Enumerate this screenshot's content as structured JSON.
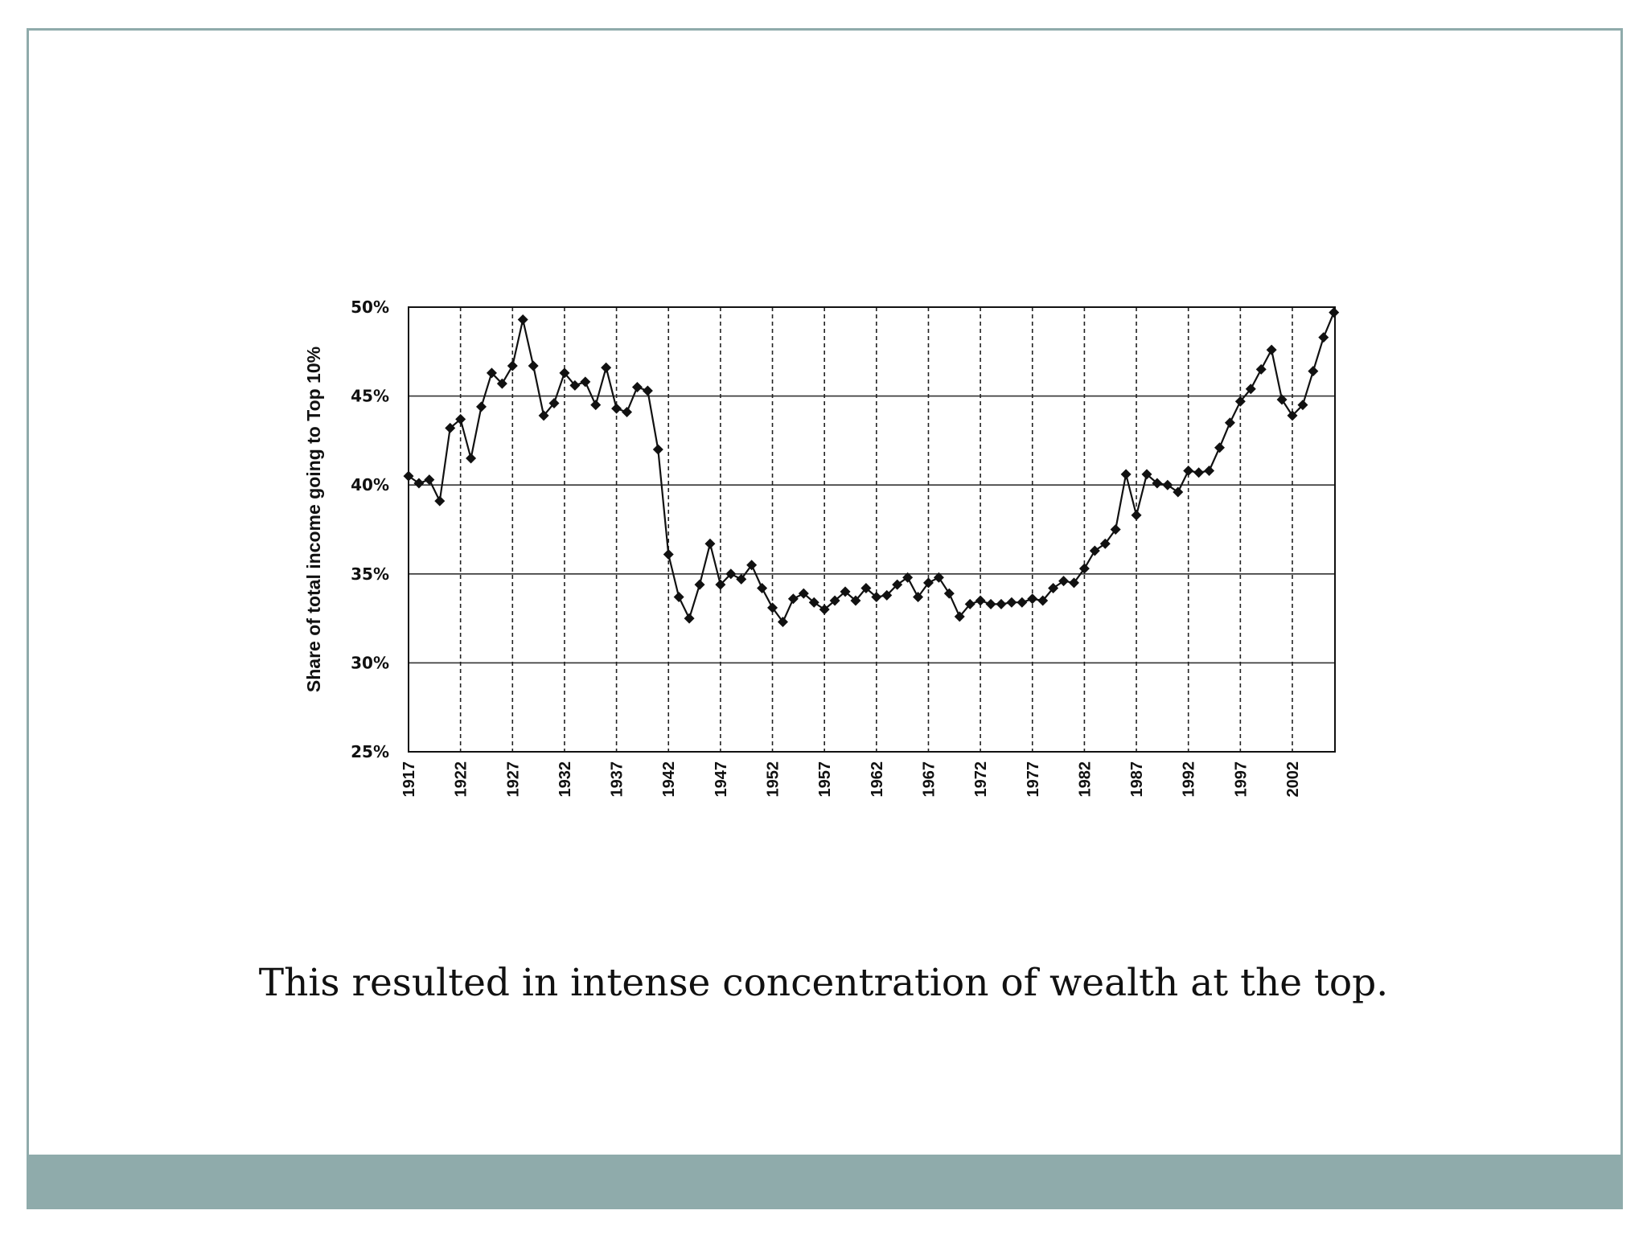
{
  "slide": {
    "caption": "This resulted in intense concentration of wealth at the top.",
    "frame_color": "#8fabab",
    "footer_color": "#8fabab"
  },
  "chart_data": {
    "type": "line",
    "title": "",
    "xlabel": "",
    "ylabel": "Share of total income going to Top 10%",
    "ylim": [
      25,
      50
    ],
    "xlim": [
      1917,
      2006
    ],
    "y_ticks": [
      "25%",
      "30%",
      "35%",
      "40%",
      "45%",
      "50%"
    ],
    "y_tick_values": [
      25,
      30,
      35,
      40,
      45,
      50
    ],
    "x_ticks": [
      "1917",
      "1922",
      "1927",
      "1932",
      "1937",
      "1942",
      "1947",
      "1952",
      "1957",
      "1962",
      "1967",
      "1972",
      "1977",
      "1982",
      "1987",
      "1992",
      "1997",
      "2002"
    ],
    "x_tick_values": [
      1917,
      1922,
      1927,
      1932,
      1937,
      1942,
      1947,
      1952,
      1957,
      1962,
      1967,
      1972,
      1977,
      1982,
      1987,
      1992,
      1997,
      2002
    ],
    "grid": {
      "horizontal": "solid",
      "vertical": "dashed"
    },
    "marker": "diamond",
    "line_color": "#111111",
    "series": [
      {
        "x": [
          1917,
          1918,
          1919,
          1920,
          1921,
          1922,
          1923,
          1924,
          1925,
          1926,
          1927,
          1928,
          1929,
          1930,
          1931,
          1932,
          1933,
          1934,
          1935,
          1936,
          1937,
          1938,
          1939,
          1940,
          1941,
          1942,
          1943,
          1944,
          1945,
          1946,
          1947,
          1948,
          1949,
          1950,
          1951,
          1952,
          1953,
          1954,
          1955,
          1956,
          1957,
          1958,
          1959,
          1960,
          1961,
          1962,
          1963,
          1964,
          1965,
          1966,
          1967,
          1968,
          1969,
          1970,
          1971,
          1972,
          1973,
          1974,
          1975,
          1976,
          1977,
          1978,
          1979,
          1980,
          1981,
          1982,
          1983,
          1984,
          1985,
          1986,
          1987,
          1988,
          1989,
          1990,
          1991,
          1992,
          1993,
          1994,
          1995,
          1996,
          1997,
          1998,
          1999,
          2000,
          2001,
          2002,
          2003,
          2004,
          2005,
          2006
        ],
        "y": [
          40.5,
          40.1,
          40.3,
          39.1,
          43.2,
          43.7,
          41.5,
          44.4,
          46.3,
          45.7,
          46.7,
          49.3,
          46.7,
          43.9,
          44.6,
          46.3,
          45.6,
          45.8,
          44.5,
          46.6,
          44.3,
          44.1,
          45.5,
          45.3,
          42.0,
          36.1,
          33.7,
          32.5,
          34.4,
          36.7,
          34.4,
          35.0,
          34.7,
          35.5,
          34.2,
          33.1,
          32.3,
          33.6,
          33.9,
          33.4,
          33.0,
          33.5,
          34.0,
          33.5,
          34.2,
          33.7,
          33.8,
          34.4,
          34.8,
          33.7,
          34.5,
          34.8,
          33.9,
          32.6,
          33.3,
          33.5,
          33.3,
          33.3,
          33.4,
          33.4,
          33.6,
          33.5,
          34.2,
          34.6,
          34.5,
          35.3,
          36.3,
          36.7,
          37.5,
          40.6,
          38.3,
          40.6,
          40.1,
          40.0,
          39.6,
          40.8,
          40.7,
          40.8,
          42.1,
          43.5,
          44.7,
          45.4,
          46.5,
          47.6,
          44.8,
          43.9,
          44.5,
          46.4,
          48.3,
          49.7
        ]
      }
    ]
  }
}
